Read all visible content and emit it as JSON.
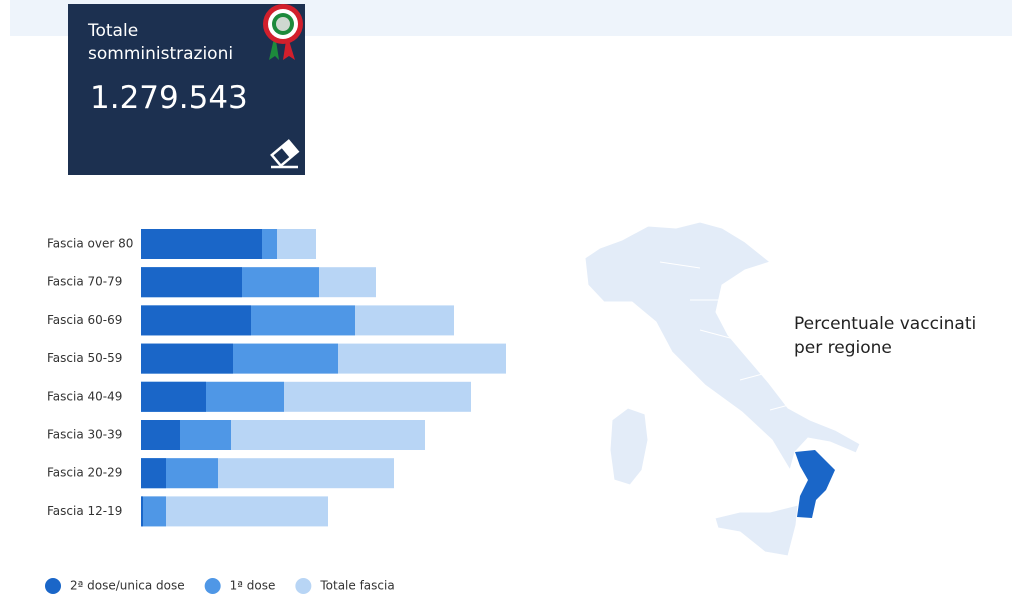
{
  "card": {
    "title": "Totale somministrazioni",
    "value": "1.279.543"
  },
  "chart_data": {
    "type": "bar",
    "orientation": "horizontal",
    "overlay": true,
    "categories": [
      "Fascia over 80",
      "Fascia 70-79",
      "Fascia 60-69",
      "Fascia 50-59",
      "Fascia 40-49",
      "Fascia 30-39",
      "Fascia 20-29",
      "Fascia 12-19"
    ],
    "series": [
      {
        "name": "2ª dose/unica dose",
        "color": "#1a66c8",
        "values": [
          121,
          101,
          110,
          92,
          65,
          39,
          25,
          2
        ]
      },
      {
        "name": "1ª dose",
        "color": "#4f97e6",
        "values": [
          136,
          178,
          214,
          197,
          143,
          90,
          77,
          25
        ]
      },
      {
        "name": "Totale fascia",
        "color": "#b8d5f5",
        "values": [
          175,
          235,
          313,
          365,
          330,
          284,
          253,
          187
        ]
      }
    ],
    "xlim": [
      0,
      400
    ]
  },
  "map": {
    "title": "Percentuale vaccinati per regione"
  }
}
